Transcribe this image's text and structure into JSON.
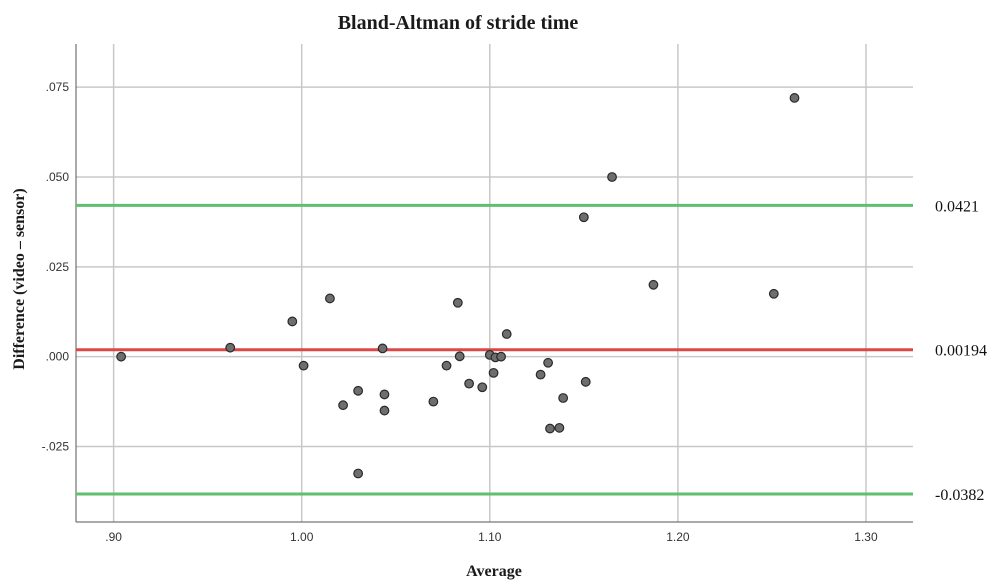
{
  "chart_data": {
    "type": "scatter",
    "title": "Bland-Altman of stride time",
    "xlabel": "Average",
    "ylabel": "Difference (video – sensor)",
    "xlim": [
      0.88,
      1.325
    ],
    "ylim": [
      -0.046,
      0.087
    ],
    "grid": true,
    "x_ticks": [
      {
        "value": 0.9,
        "label": ".90"
      },
      {
        "value": 1.0,
        "label": "1.00"
      },
      {
        "value": 1.1,
        "label": "1.10"
      },
      {
        "value": 1.2,
        "label": "1.20"
      },
      {
        "value": 1.3,
        "label": "1.30"
      }
    ],
    "y_ticks": [
      {
        "value": -0.025,
        "label": "-.025"
      },
      {
        "value": 0.0,
        "label": ".000"
      },
      {
        "value": 0.025,
        "label": ".025"
      },
      {
        "value": 0.05,
        "label": ".050"
      },
      {
        "value": 0.075,
        "label": ".075"
      }
    ],
    "reference_lines": [
      {
        "value": 0.0421,
        "label": "0.0421",
        "color": "#5fbf6f"
      },
      {
        "value": 0.00194,
        "label": "0.00194",
        "color": "#dc4848"
      },
      {
        "value": -0.0382,
        "label": "-0.0382",
        "color": "#5fbf6f"
      }
    ],
    "point_color": "#6e6e6e",
    "points": [
      {
        "x": 0.904,
        "y": 0.0
      },
      {
        "x": 0.962,
        "y": 0.0025
      },
      {
        "x": 0.995,
        "y": 0.0098
      },
      {
        "x": 1.001,
        "y": -0.0025
      },
      {
        "x": 1.015,
        "y": 0.0162
      },
      {
        "x": 1.022,
        "y": -0.0135
      },
      {
        "x": 1.03,
        "y": -0.0095
      },
      {
        "x": 1.03,
        "y": -0.0325
      },
      {
        "x": 1.043,
        "y": 0.0023
      },
      {
        "x": 1.044,
        "y": -0.0105
      },
      {
        "x": 1.044,
        "y": -0.015
      },
      {
        "x": 1.07,
        "y": -0.0125
      },
      {
        "x": 1.077,
        "y": -0.0025
      },
      {
        "x": 1.083,
        "y": 0.015
      },
      {
        "x": 1.084,
        "y": 0.0001
      },
      {
        "x": 1.089,
        "y": -0.0075
      },
      {
        "x": 1.096,
        "y": -0.0085
      },
      {
        "x": 1.1,
        "y": 0.0005
      },
      {
        "x": 1.102,
        "y": -0.0045
      },
      {
        "x": 1.103,
        "y": -0.0002
      },
      {
        "x": 1.106,
        "y": 0.0
      },
      {
        "x": 1.109,
        "y": 0.0063
      },
      {
        "x": 1.127,
        "y": -0.005
      },
      {
        "x": 1.131,
        "y": -0.0017
      },
      {
        "x": 1.132,
        "y": -0.02
      },
      {
        "x": 1.137,
        "y": -0.0198
      },
      {
        "x": 1.139,
        "y": -0.0115
      },
      {
        "x": 1.15,
        "y": 0.0388
      },
      {
        "x": 1.151,
        "y": -0.007
      },
      {
        "x": 1.165,
        "y": 0.05
      },
      {
        "x": 1.187,
        "y": 0.02
      },
      {
        "x": 1.251,
        "y": 0.0175
      },
      {
        "x": 1.262,
        "y": 0.072
      }
    ]
  }
}
